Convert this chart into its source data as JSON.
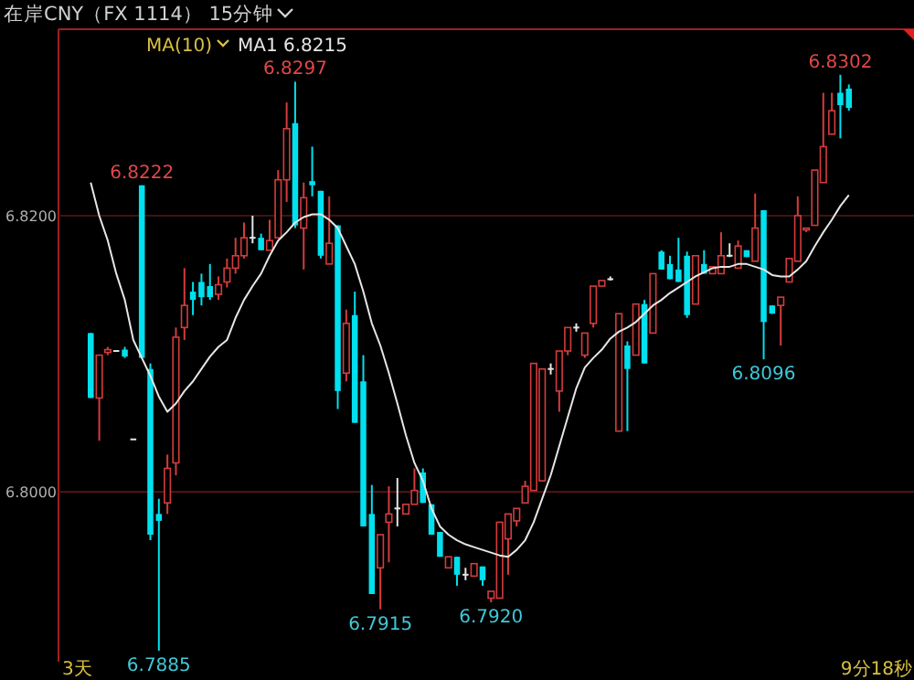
{
  "chart_data": {
    "type": "candlestick",
    "title": "在岸CNY（FX 1114） 15分钟",
    "categories": [
      null,
      null,
      null,
      null,
      null,
      null,
      null,
      null,
      null,
      null,
      null,
      null,
      null,
      null,
      null,
      null,
      null,
      null,
      null,
      null,
      null,
      null,
      null,
      null,
      null,
      null,
      null,
      null,
      null,
      null,
      null,
      null,
      null,
      null,
      null,
      null,
      null,
      null,
      null,
      null,
      null,
      null,
      null,
      null,
      null,
      null,
      null,
      null,
      null,
      null,
      null,
      null,
      null,
      null,
      null,
      null,
      null,
      null,
      null,
      null,
      null,
      null,
      null,
      null,
      null,
      null,
      null,
      null,
      null,
      null,
      null,
      null,
      null,
      null,
      null,
      null,
      null,
      null,
      null,
      null,
      null,
      null,
      null,
      null,
      null,
      null,
      null,
      null,
      null,
      null
    ],
    "ohlc": [
      [
        6.8115,
        6.8115,
        6.8068,
        6.8068
      ],
      [
        6.8068,
        6.8099,
        6.8037,
        6.8099
      ],
      [
        6.8101,
        6.8105,
        6.8099,
        6.8103
      ],
      [
        6.8102,
        6.8102,
        6.8102,
        6.8102
      ],
      [
        6.8103,
        6.8105,
        6.8097,
        6.8098
      ],
      [
        6.8038,
        6.8038,
        6.8038,
        6.8038
      ],
      [
        6.8222,
        6.8222,
        6.8097,
        6.8097
      ],
      [
        6.8089,
        6.8093,
        6.7965,
        6.7969
      ],
      [
        6.7984,
        6.7995,
        6.7885,
        6.7979
      ],
      [
        6.7992,
        6.8027,
        6.7984,
        6.8017
      ],
      [
        6.8021,
        6.8119,
        6.8012,
        6.8112
      ],
      [
        6.8119,
        6.8162,
        6.811,
        6.8135
      ],
      [
        6.8145,
        6.8152,
        6.8128,
        6.8139
      ],
      [
        6.8152,
        6.8158,
        6.8135,
        6.8141
      ],
      [
        6.8149,
        6.8165,
        6.8139,
        6.8141
      ],
      [
        6.8143,
        6.8156,
        6.8139,
        6.815
      ],
      [
        6.8152,
        6.8169,
        6.8148,
        6.8162
      ],
      [
        6.8162,
        6.8184,
        6.8158,
        6.8171
      ],
      [
        6.8171,
        6.8195,
        6.8169,
        6.8184
      ],
      [
        6.8184,
        6.82,
        6.818,
        6.8184
      ],
      [
        6.8184,
        6.8187,
        6.8175,
        6.8175
      ],
      [
        6.8175,
        6.8197,
        6.8175,
        6.8182
      ],
      [
        6.8184,
        6.8233,
        6.8184,
        6.8226
      ],
      [
        6.8226,
        6.8282,
        6.821,
        6.8263
      ],
      [
        6.8267,
        6.8297,
        6.8191,
        6.8193
      ],
      [
        6.8191,
        6.8224,
        6.8161,
        6.8213
      ],
      [
        6.8225,
        6.825,
        6.8214,
        6.8222
      ],
      [
        6.8218,
        6.8218,
        6.8169,
        6.8171
      ],
      [
        6.8165,
        6.8214,
        6.8165,
        6.818
      ],
      [
        6.8193,
        6.8193,
        6.806,
        6.8073
      ],
      [
        6.8086,
        6.8132,
        6.808,
        6.8122
      ],
      [
        6.8128,
        6.8145,
        6.805,
        6.805
      ],
      [
        6.808,
        6.8099,
        6.7975,
        6.7975
      ],
      [
        6.7984,
        6.8005,
        6.7926,
        6.7926
      ],
      [
        6.7945,
        6.7969,
        6.7915,
        6.7969
      ],
      [
        6.7978,
        6.8004,
        6.7949,
        6.7984
      ],
      [
        6.7988,
        6.801,
        6.7975,
        6.7988
      ],
      [
        6.7984,
        6.7991,
        6.7984,
        6.7991
      ],
      [
        6.7991,
        6.8017,
        6.7991,
        6.8001
      ],
      [
        6.8014,
        6.8017,
        6.7992,
        6.7992
      ],
      [
        6.7991,
        6.7991,
        6.7969,
        6.7969
      ],
      [
        6.7971,
        6.7971,
        6.7953,
        6.7953
      ],
      [
        6.7945,
        6.7953,
        6.7945,
        6.7953
      ],
      [
        6.7953,
        6.7953,
        6.7932,
        6.794
      ],
      [
        6.794,
        6.7945,
        6.7936,
        6.794
      ],
      [
        6.7939,
        6.7948,
        6.7939,
        6.7948
      ],
      [
        6.7946,
        6.7946,
        6.7932,
        6.7936
      ],
      [
        6.7923,
        6.7928,
        6.792,
        6.7928
      ],
      [
        6.7923,
        6.7978,
        6.7923,
        6.7978
      ],
      [
        6.7966,
        6.7984,
        6.794,
        6.7984
      ],
      [
        6.7979,
        6.7988,
        6.7975,
        6.7988
      ],
      [
        6.7992,
        6.8008,
        6.7992,
        6.8004
      ],
      [
        6.8001,
        6.8093,
        6.8001,
        6.8093
      ],
      [
        6.8008,
        6.8089,
        6.8008,
        6.8089
      ],
      [
        6.8089,
        6.8093,
        6.8085,
        6.8089
      ],
      [
        6.8073,
        6.8102,
        6.8058,
        6.8102
      ],
      [
        6.8102,
        6.8119,
        6.8099,
        6.8119
      ],
      [
        6.8119,
        6.8122,
        6.8116,
        6.8119
      ],
      [
        6.8099,
        6.8115,
        6.8097,
        6.8115
      ],
      [
        6.8122,
        6.8149,
        6.8119,
        6.8149
      ],
      [
        6.8149,
        6.8153,
        6.8149,
        6.8153
      ],
      [
        6.8154,
        6.8156,
        6.8153,
        6.8154
      ],
      [
        6.8044,
        6.8129,
        6.8044,
        6.8129
      ],
      [
        6.8106,
        6.8109,
        6.8044,
        6.8089
      ],
      [
        6.8099,
        6.8136,
        6.8099,
        6.8136
      ],
      [
        6.8136,
        6.8139,
        6.8093,
        6.8093
      ],
      [
        6.8115,
        6.8158,
        6.8115,
        6.8158
      ],
      [
        6.8174,
        6.8175,
        6.8161,
        6.8161
      ],
      [
        6.8165,
        6.8171,
        6.8154,
        6.8154
      ],
      [
        6.8161,
        6.8184,
        6.8152,
        6.8152
      ],
      [
        6.8171,
        6.8174,
        6.8126,
        6.8128
      ],
      [
        6.8136,
        6.8171,
        6.8136,
        6.8171
      ],
      [
        6.8165,
        6.8175,
        6.8158,
        6.8158
      ],
      [
        6.8158,
        6.8163,
        6.8158,
        6.8163
      ],
      [
        6.8158,
        6.8188,
        6.8158,
        6.8171
      ],
      [
        6.8171,
        6.818,
        6.817,
        6.8171
      ],
      [
        6.8162,
        6.8182,
        6.8162,
        6.8178
      ],
      [
        6.8175,
        6.8175,
        6.817,
        6.817
      ],
      [
        6.8167,
        6.8216,
        6.8167,
        6.8191
      ],
      [
        6.8204,
        6.8204,
        6.8096,
        6.8123
      ],
      [
        6.8135,
        6.8135,
        6.8129,
        6.8129
      ],
      [
        6.8135,
        6.8141,
        6.8106,
        6.8141
      ],
      [
        6.8152,
        6.8169,
        6.8152,
        6.8169
      ],
      [
        6.8167,
        6.8214,
        6.8167,
        6.82
      ],
      [
        6.819,
        6.8191,
        6.8188,
        6.8191
      ],
      [
        6.8193,
        6.8233,
        6.8193,
        6.8233
      ],
      [
        6.8224,
        6.8289,
        6.8224,
        6.825
      ],
      [
        6.8259,
        6.8289,
        6.8259,
        6.8276
      ],
      [
        6.8289,
        6.8302,
        6.8256,
        6.828
      ],
      [
        6.8292,
        6.8295,
        6.8276,
        6.8278
      ]
    ],
    "colors": [
      "#00e0ee",
      "#d43c3c",
      "#d43c3c",
      "#e6e6e6",
      "#00e0ee",
      "#e6e6e6",
      "#00e0ee",
      "#00e0ee",
      "#00e0ee",
      "#d43c3c",
      "#d43c3c",
      "#d43c3c",
      "#00e0ee",
      "#00e0ee",
      "#00e0ee",
      "#d43c3c",
      "#d43c3c",
      "#d43c3c",
      "#d43c3c",
      "#e6e6e6",
      "#00e0ee",
      "#d43c3c",
      "#d43c3c",
      "#d43c3c",
      "#00e0ee",
      "#d43c3c",
      "#00e0ee",
      "#00e0ee",
      "#d43c3c",
      "#00e0ee",
      "#d43c3c",
      "#00e0ee",
      "#00e0ee",
      "#00e0ee",
      "#d43c3c",
      "#d43c3c",
      "#e6e6e6",
      "#d43c3c",
      "#d43c3c",
      "#00e0ee",
      "#00e0ee",
      "#00e0ee",
      "#d43c3c",
      "#00e0ee",
      "#e6e6e6",
      "#d43c3c",
      "#00e0ee",
      "#d43c3c",
      "#d43c3c",
      "#d43c3c",
      "#d43c3c",
      "#d43c3c",
      "#d43c3c",
      "#d43c3c",
      "#e6e6e6",
      "#d43c3c",
      "#d43c3c",
      "#e6e6e6",
      "#d43c3c",
      "#d43c3c",
      "#d43c3c",
      "#e6e6e6",
      "#d43c3c",
      "#00e0ee",
      "#d43c3c",
      "#00e0ee",
      "#d43c3c",
      "#00e0ee",
      "#00e0ee",
      "#00e0ee",
      "#00e0ee",
      "#d43c3c",
      "#00e0ee",
      "#d43c3c",
      "#d43c3c",
      "#e6e6e6",
      "#d43c3c",
      "#00e0ee",
      "#d43c3c",
      "#00e0ee",
      "#00e0ee",
      "#d43c3c",
      "#d43c3c",
      "#d43c3c",
      "#d43c3c",
      "#d43c3c",
      "#d43c3c",
      "#d43c3c",
      "#00e0ee",
      "#00e0ee"
    ],
    "series": [
      {
        "type": "line",
        "color": "#e6e6e6",
        "values": [
          6.8224,
          6.82,
          6.8182,
          6.8158,
          6.8139,
          6.811,
          6.8097,
          6.8084,
          6.8069,
          6.8058,
          6.8064,
          6.8073,
          6.808,
          6.8089,
          6.8098,
          6.8105,
          6.811,
          6.8126,
          6.8139,
          6.8149,
          6.8158,
          6.8171,
          6.8182,
          6.8188,
          6.8195,
          6.8199,
          6.8201,
          6.8201,
          6.8197,
          6.8191,
          6.8178,
          6.8165,
          6.8145,
          6.8122,
          6.8106,
          6.8086,
          6.8064,
          6.8041,
          6.8021,
          6.8008,
          6.7988,
          6.7975,
          6.7969,
          6.7965,
          6.7962,
          6.796,
          6.7958,
          6.7956,
          6.7954,
          6.7953,
          6.7958,
          6.7965,
          6.7978,
          6.7995,
          6.8012,
          6.8033,
          6.8054,
          6.8075,
          6.809,
          6.8097,
          6.8103,
          6.8111,
          6.8116,
          6.8119,
          6.8123,
          6.8129,
          6.8135,
          6.8139,
          6.8144,
          6.8148,
          6.8152,
          6.8156,
          6.8159,
          6.8162,
          6.8163,
          6.8163,
          6.8165,
          6.8165,
          6.8163,
          6.8161,
          6.8157,
          6.8156,
          6.8156,
          6.8161,
          6.8167,
          6.8178,
          6.8188,
          6.8197,
          6.8207,
          6.8215
        ]
      }
    ],
    "ylim": [
      6.7877,
      6.8335
    ],
    "yticks": [
      {
        "value": 6.82,
        "label": "6.8200"
      },
      {
        "value": 6.8,
        "label": "6.8000"
      }
    ],
    "grid": "y",
    "annotations": [
      "MA(10)",
      "MA1 6.8215",
      "3天",
      "9分18秒",
      {
        "text": "6.8222",
        "y": 6.8222
      },
      {
        "text": "6.8297",
        "y": 6.8297
      },
      {
        "text": "6.7885",
        "y": 6.7885
      },
      {
        "text": "6.7915",
        "y": 6.7915
      },
      {
        "text": "6.7920",
        "y": 6.792
      },
      {
        "text": "6.8096",
        "y": 6.8096
      },
      {
        "text": "6.8302",
        "y": 6.8302
      }
    ]
  }
}
